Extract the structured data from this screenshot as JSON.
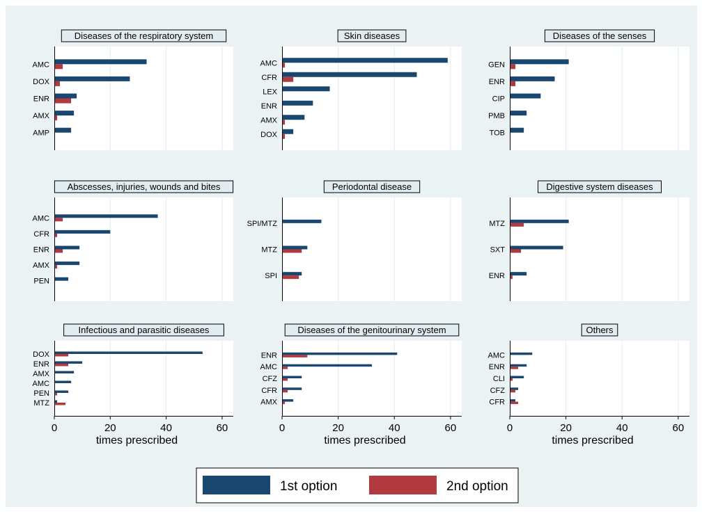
{
  "colors": {
    "first": "#1a476f",
    "second": "#b03a3e",
    "outer_bg": "#eaf2f3",
    "plot_bg": "#ffffff",
    "title_bg": "#e1ecf0",
    "grid": "#e2ecec"
  },
  "legend": {
    "items": [
      {
        "label": "1st option",
        "color": "#1a476f"
      },
      {
        "label": "2nd option",
        "color": "#b03a3e"
      }
    ]
  },
  "chart_data": [
    {
      "type": "bar",
      "orientation": "horizontal",
      "title": "Diseases of the respiratory system",
      "categories": [
        "AMC",
        "DOX",
        "ENR",
        "AMX",
        "AMP"
      ],
      "series": [
        {
          "name": "1st option",
          "values": [
            33,
            27,
            8,
            7,
            6
          ]
        },
        {
          "name": "2nd option",
          "values": [
            3,
            2,
            6,
            1,
            0
          ]
        }
      ],
      "xlabel": "",
      "xlim": [
        0,
        64
      ],
      "xticks": []
    },
    {
      "type": "bar",
      "orientation": "horizontal",
      "title": "Skin diseases",
      "categories": [
        "AMC",
        "CFR",
        "LEX",
        "ENR",
        "AMX",
        "DOX"
      ],
      "series": [
        {
          "name": "1st option",
          "values": [
            59,
            48,
            17,
            11,
            8,
            4
          ]
        },
        {
          "name": "2nd option",
          "values": [
            1,
            4,
            0,
            0,
            1,
            1
          ]
        }
      ],
      "xlabel": "",
      "xlim": [
        0,
        64
      ],
      "xticks": []
    },
    {
      "type": "bar",
      "orientation": "horizontal",
      "title": "Diseases of the senses",
      "categories": [
        "GEN",
        "ENR",
        "CIP",
        "PMB",
        "TOB"
      ],
      "series": [
        {
          "name": "1st option",
          "values": [
            21,
            16,
            11,
            6,
            5
          ]
        },
        {
          "name": "2nd option",
          "values": [
            2,
            2,
            0,
            0,
            0
          ]
        }
      ],
      "xlabel": "",
      "xlim": [
        0,
        64
      ],
      "xticks": []
    },
    {
      "type": "bar",
      "orientation": "horizontal",
      "title": "Abscesses, injuries, wounds and bites",
      "categories": [
        "AMC",
        "CFR",
        "ENR",
        "AMX",
        "PEN"
      ],
      "series": [
        {
          "name": "1st option",
          "values": [
            37,
            20,
            9,
            9,
            5
          ]
        },
        {
          "name": "2nd option",
          "values": [
            3,
            1,
            3,
            1,
            0
          ]
        }
      ],
      "xlabel": "",
      "xlim": [
        0,
        64
      ],
      "xticks": []
    },
    {
      "type": "bar",
      "orientation": "horizontal",
      "title": "Periodontal disease",
      "categories": [
        "SPI/MTZ",
        "MTZ",
        "SPI"
      ],
      "series": [
        {
          "name": "1st option",
          "values": [
            14,
            9,
            7
          ]
        },
        {
          "name": "2nd option",
          "values": [
            0,
            7,
            6
          ]
        }
      ],
      "xlabel": "",
      "xlim": [
        0,
        64
      ],
      "xticks": []
    },
    {
      "type": "bar",
      "orientation": "horizontal",
      "title": "Digestive system diseases",
      "categories": [
        "MTZ",
        "SXT",
        "ENR"
      ],
      "series": [
        {
          "name": "1st option",
          "values": [
            21,
            19,
            6
          ]
        },
        {
          "name": "2nd option",
          "values": [
            5,
            4,
            1
          ]
        }
      ],
      "xlabel": "",
      "xlim": [
        0,
        64
      ],
      "xticks": []
    },
    {
      "type": "bar",
      "orientation": "horizontal",
      "title": "Infectious and parasitic diseases",
      "categories": [
        "DOX",
        "ENR",
        "AMX",
        "AMC",
        "PEN",
        "MTZ"
      ],
      "series": [
        {
          "name": "1st option",
          "values": [
            53,
            10,
            7,
            6,
            5,
            1
          ]
        },
        {
          "name": "2nd option",
          "values": [
            5,
            5,
            0,
            0,
            1,
            4
          ]
        }
      ],
      "xlabel": "times prescribed",
      "xlim": [
        0,
        64
      ],
      "xticks": [
        0,
        20,
        40,
        60
      ]
    },
    {
      "type": "bar",
      "orientation": "horizontal",
      "title": "Diseases of the genitourinary system",
      "categories": [
        "ENR",
        "AMC",
        "CFZ",
        "CFR",
        "AMX"
      ],
      "series": [
        {
          "name": "1st option",
          "values": [
            41,
            32,
            7,
            7,
            4
          ]
        },
        {
          "name": "2nd option",
          "values": [
            9,
            2,
            2,
            2,
            1
          ]
        }
      ],
      "xlabel": "times prescribed",
      "xlim": [
        0,
        64
      ],
      "xticks": [
        0,
        20,
        40,
        60
      ]
    },
    {
      "type": "bar",
      "orientation": "horizontal",
      "title": "Others",
      "categories": [
        "AMC",
        "ENR",
        "CLI",
        "CFZ",
        "CFR"
      ],
      "series": [
        {
          "name": "1st option",
          "values": [
            8,
            6,
            5,
            3,
            2
          ]
        },
        {
          "name": "2nd option",
          "values": [
            0,
            3,
            1,
            2,
            3
          ]
        }
      ],
      "xlabel": "times prescribed",
      "xlim": [
        0,
        64
      ],
      "xticks": [
        0,
        20,
        40,
        60
      ]
    }
  ]
}
